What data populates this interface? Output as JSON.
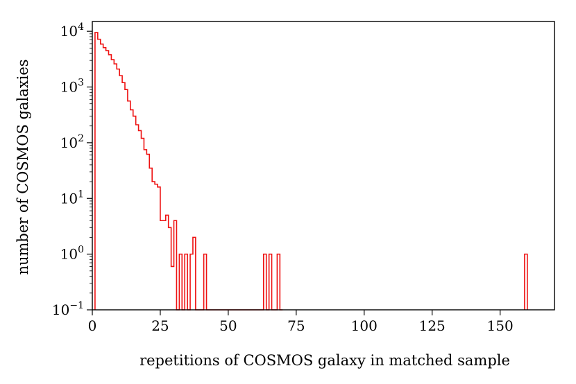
{
  "chart_data": {
    "type": "histogram",
    "scale_y": "log",
    "xlabel": "repetitions of COSMOS galaxy in matched sample",
    "ylabel": "number of COSMOS galaxies",
    "xlim": [
      0,
      170
    ],
    "ylim": [
      0.1,
      15000
    ],
    "x_ticks": [
      0,
      25,
      50,
      75,
      100,
      125,
      150
    ],
    "x_tick_labels": [
      "0",
      "25",
      "50",
      "75",
      "100",
      "125",
      "150"
    ],
    "y_ticks": [
      0.1,
      1,
      10,
      100,
      1000,
      10000
    ],
    "y_tick_labels": [
      {
        "base": "10",
        "exp": "−1"
      },
      {
        "base": "10",
        "exp": "0"
      },
      {
        "base": "10",
        "exp": "1"
      },
      {
        "base": "10",
        "exp": "2"
      },
      {
        "base": "10",
        "exp": "3"
      },
      {
        "base": "10",
        "exp": "4"
      }
    ],
    "line_color": "#ee1111",
    "bins_start": 1,
    "bin_width": 1,
    "counts": [
      9500,
      7200,
      5900,
      5100,
      4500,
      3800,
      3100,
      2600,
      2100,
      1600,
      1200,
      900,
      560,
      390,
      300,
      210,
      165,
      120,
      75,
      62,
      35,
      20,
      18,
      16,
      4,
      4,
      5,
      3,
      0.6,
      4,
      0.1,
      1,
      0.1,
      1,
      0.1,
      1,
      2,
      0.1,
      0.1,
      0.1,
      1,
      0.1,
      0.1,
      0.1,
      0.1,
      0.1,
      0.1,
      0.1,
      0.1,
      0.1,
      0.1,
      0.1,
      0.1,
      0.1,
      0.1,
      0.1,
      0.1,
      0.1,
      0.1,
      0.1,
      0.1,
      0.1,
      1,
      0.1,
      1,
      0.1,
      0.1,
      1,
      0.1
    ],
    "outlier_bins": [
      {
        "bin_start": 159,
        "count": 1
      }
    ]
  }
}
